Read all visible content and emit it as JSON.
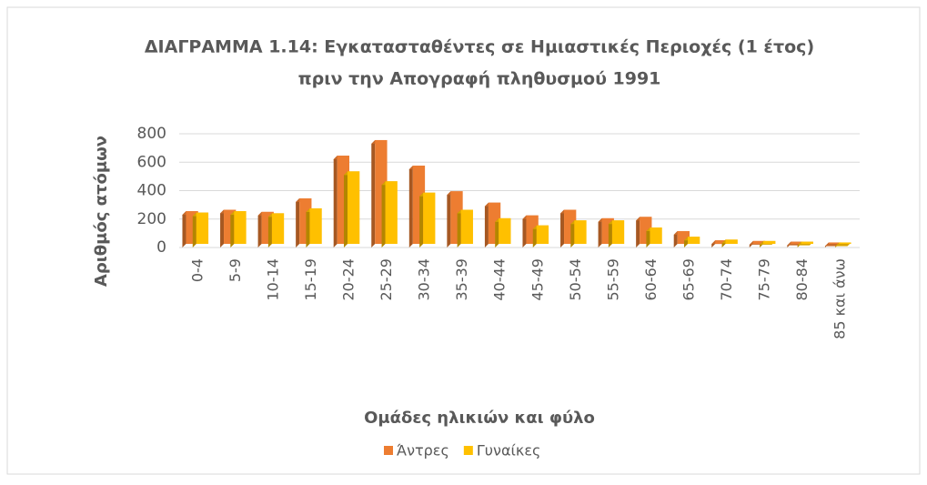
{
  "chart_data": {
    "type": "bar",
    "title": "ΔΙΑΓΡΑΜΜΑ 1.14: Εγκατασταθέντες σε Ημιαστικές Περιοχές (1 έτος)",
    "subtitle": "πριν την Απογραφή πληθυσμού 1991",
    "x_label": "Ομάδες ηλικιών και φύλο",
    "y_label": "Αριθμός ατόμων",
    "categories": [
      "0-4",
      "5-9",
      "10-14",
      "15-19",
      "20-24",
      "25-29",
      "30-34",
      "35-39",
      "40-44",
      "45-49",
      "50-54",
      "55-59",
      "60-64",
      "65-69",
      "70-74",
      "75-79",
      "80-84",
      "85 και άνω"
    ],
    "series": [
      {
        "name": "Άντρες",
        "color": "#ed7d31",
        "values": [
          230,
          240,
          225,
          320,
          620,
          730,
          550,
          370,
          290,
          200,
          240,
          180,
          190,
          90,
          25,
          20,
          15,
          10
        ]
      },
      {
        "name": "Γυναίκες",
        "color": "#ffc000",
        "values": [
          220,
          230,
          215,
          250,
          510,
          440,
          360,
          240,
          180,
          130,
          165,
          165,
          115,
          50,
          30,
          20,
          15,
          10
        ]
      }
    ],
    "ylim": [
      0,
      800
    ],
    "yticks": [
      0,
      200,
      400,
      600,
      800
    ],
    "grid": true,
    "legend": "bottom"
  }
}
